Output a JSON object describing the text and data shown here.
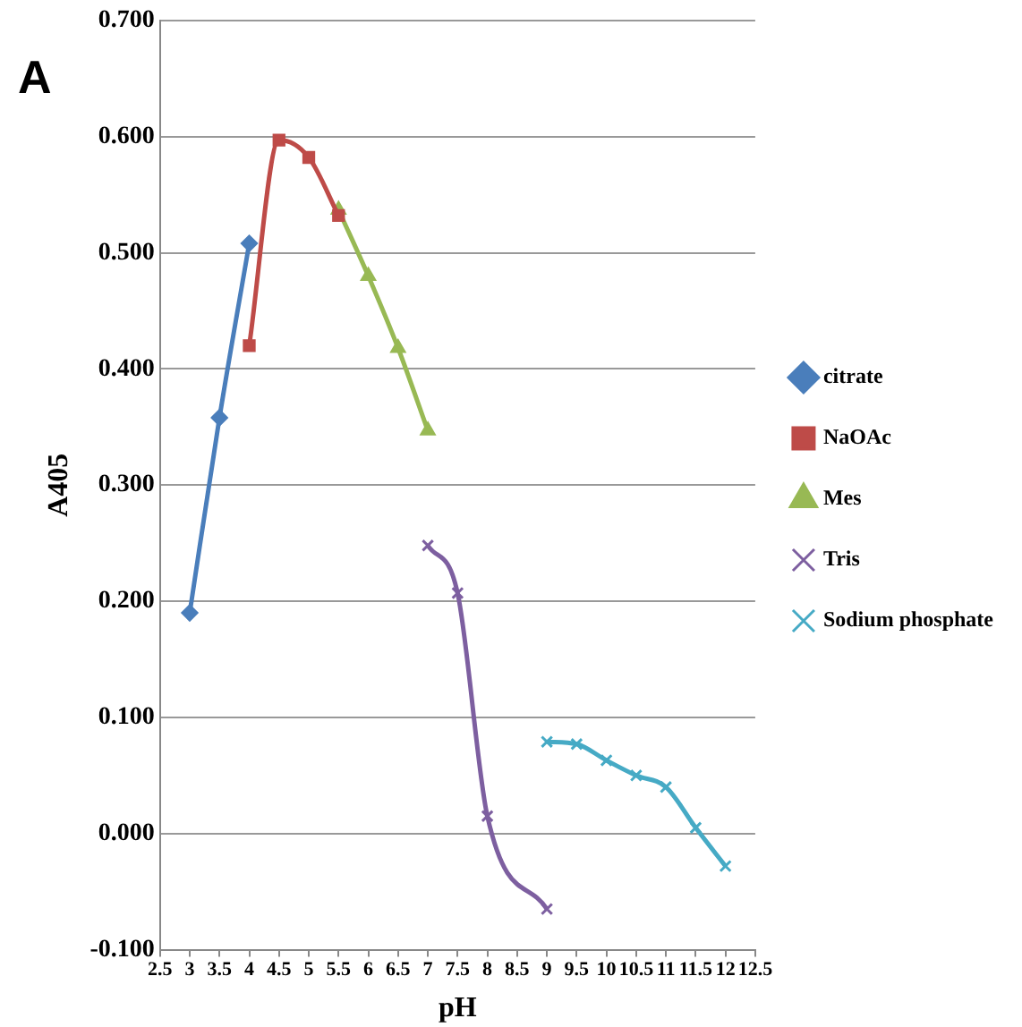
{
  "chart_data": {
    "type": "line",
    "xlabel": "pH",
    "ylabel": "A405",
    "annotations": [
      "A"
    ],
    "xlim": [
      2.5,
      12.5
    ],
    "xticks": [
      2.5,
      3,
      3.5,
      4,
      4.5,
      5,
      5.5,
      6,
      6.5,
      7,
      7.5,
      8,
      8.5,
      9,
      9.5,
      10,
      10.5,
      11,
      11.5,
      12,
      12.5
    ],
    "ylim": [
      -0.1,
      0.7
    ],
    "yticks": [
      {
        "value": -0.1,
        "label": "-0.100"
      },
      {
        "value": 0,
        "label": "0.000"
      },
      {
        "value": 0.1,
        "label": "0.100"
      },
      {
        "value": 0.2,
        "label": "0.200"
      },
      {
        "value": 0.3,
        "label": "0.300"
      },
      {
        "value": 0.4,
        "label": "0.400"
      },
      {
        "value": 0.5,
        "label": "0.500"
      },
      {
        "value": 0.6,
        "label": "0.600"
      },
      {
        "value": 0.7,
        "label": "0.700"
      }
    ],
    "grid": "y",
    "legend": "right",
    "series": [
      {
        "name": "citrate",
        "color": "#4a7ebb",
        "marker": "diamond",
        "x": [
          3,
          3.5,
          4
        ],
        "values": [
          0.19,
          0.358,
          0.508
        ]
      },
      {
        "name": "NaOAc",
        "color": "#be4b48",
        "marker": "square",
        "x": [
          4,
          4.5,
          5,
          5.5
        ],
        "values": [
          0.42,
          0.597,
          0.582,
          0.532
        ]
      },
      {
        "name": "Mes",
        "color": "#98b954",
        "marker": "triangle",
        "x": [
          5.5,
          6,
          6.5,
          7
        ],
        "values": [
          0.537,
          0.48,
          0.418,
          0.347
        ]
      },
      {
        "name": "Tris",
        "color": "#7d5fa0",
        "marker": "cross",
        "x": [
          7,
          7.5,
          8,
          9
        ],
        "values": [
          0.248,
          0.207,
          0.015,
          -0.065
        ]
      },
      {
        "name": "Sodium phosphate",
        "color": "#46aac5",
        "marker": "cross",
        "x": [
          9,
          9.5,
          10,
          10.5,
          11,
          11.5,
          12
        ],
        "values": [
          0.079,
          0.077,
          0.063,
          0.05,
          0.04,
          0.005,
          -0.028
        ]
      }
    ]
  }
}
